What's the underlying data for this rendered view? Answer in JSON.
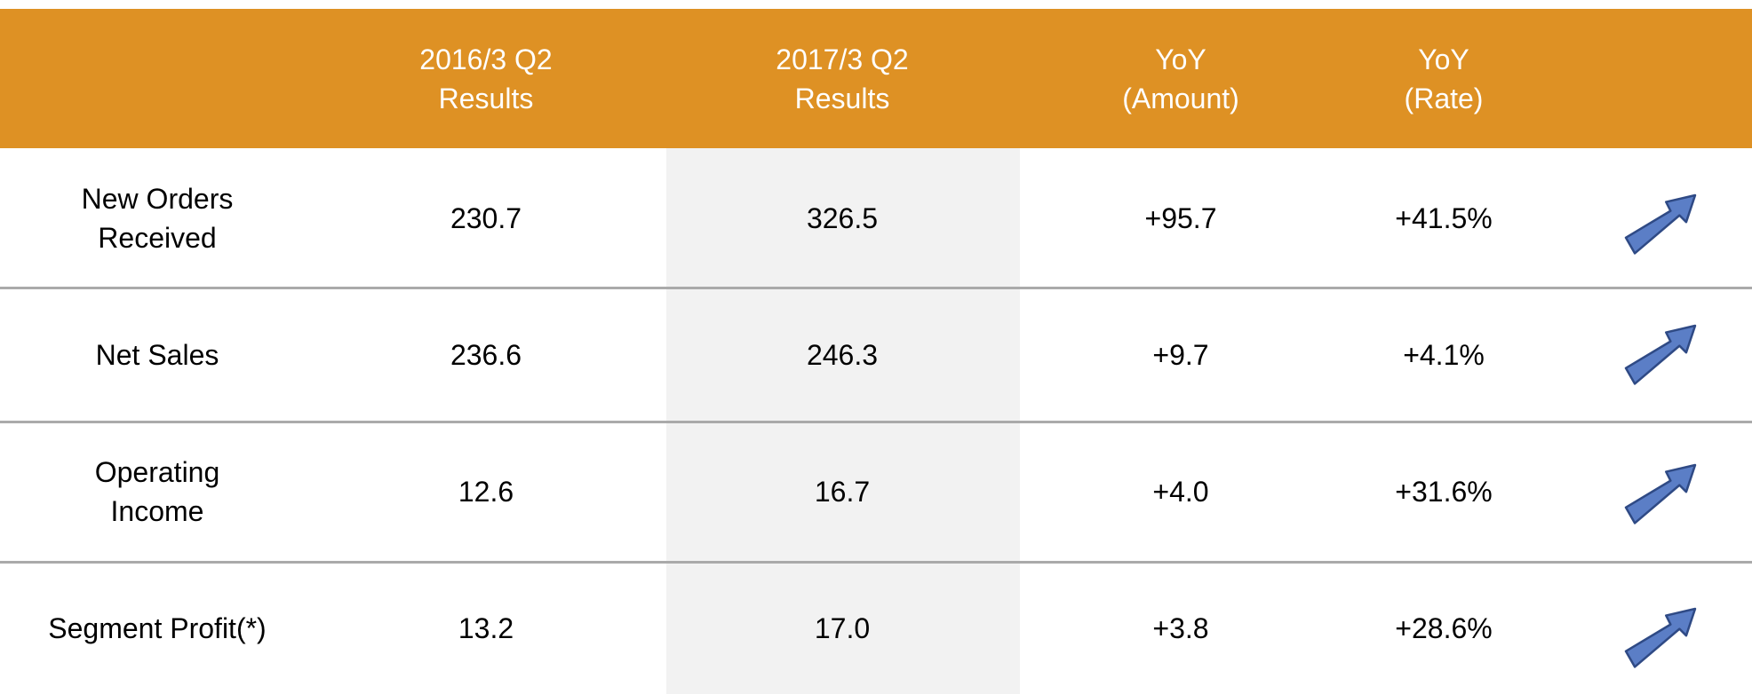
{
  "table": {
    "header": [
      [
        "2016/3 Q2",
        "Results"
      ],
      [
        "2017/3 Q2",
        "Results"
      ],
      [
        "YoY",
        "(Amount)"
      ],
      [
        "YoY",
        "(Rate)"
      ]
    ],
    "rows": [
      {
        "label": [
          "New Orders",
          "Received"
        ],
        "cells": [
          "230.7",
          "326.5",
          "+95.7",
          "+41.5%"
        ]
      },
      {
        "label": [
          "Net Sales"
        ],
        "cells": [
          "236.6",
          "246.3",
          "+9.7",
          "+4.1%"
        ]
      },
      {
        "label": [
          "Operating",
          "Income"
        ],
        "cells": [
          "12.6",
          "16.7",
          "+4.0",
          "+31.6%"
        ]
      },
      {
        "label": [
          "Segment Profit(*)"
        ],
        "cells": [
          "13.2",
          "17.0",
          "+3.8",
          "+28.6%"
        ]
      }
    ]
  }
}
